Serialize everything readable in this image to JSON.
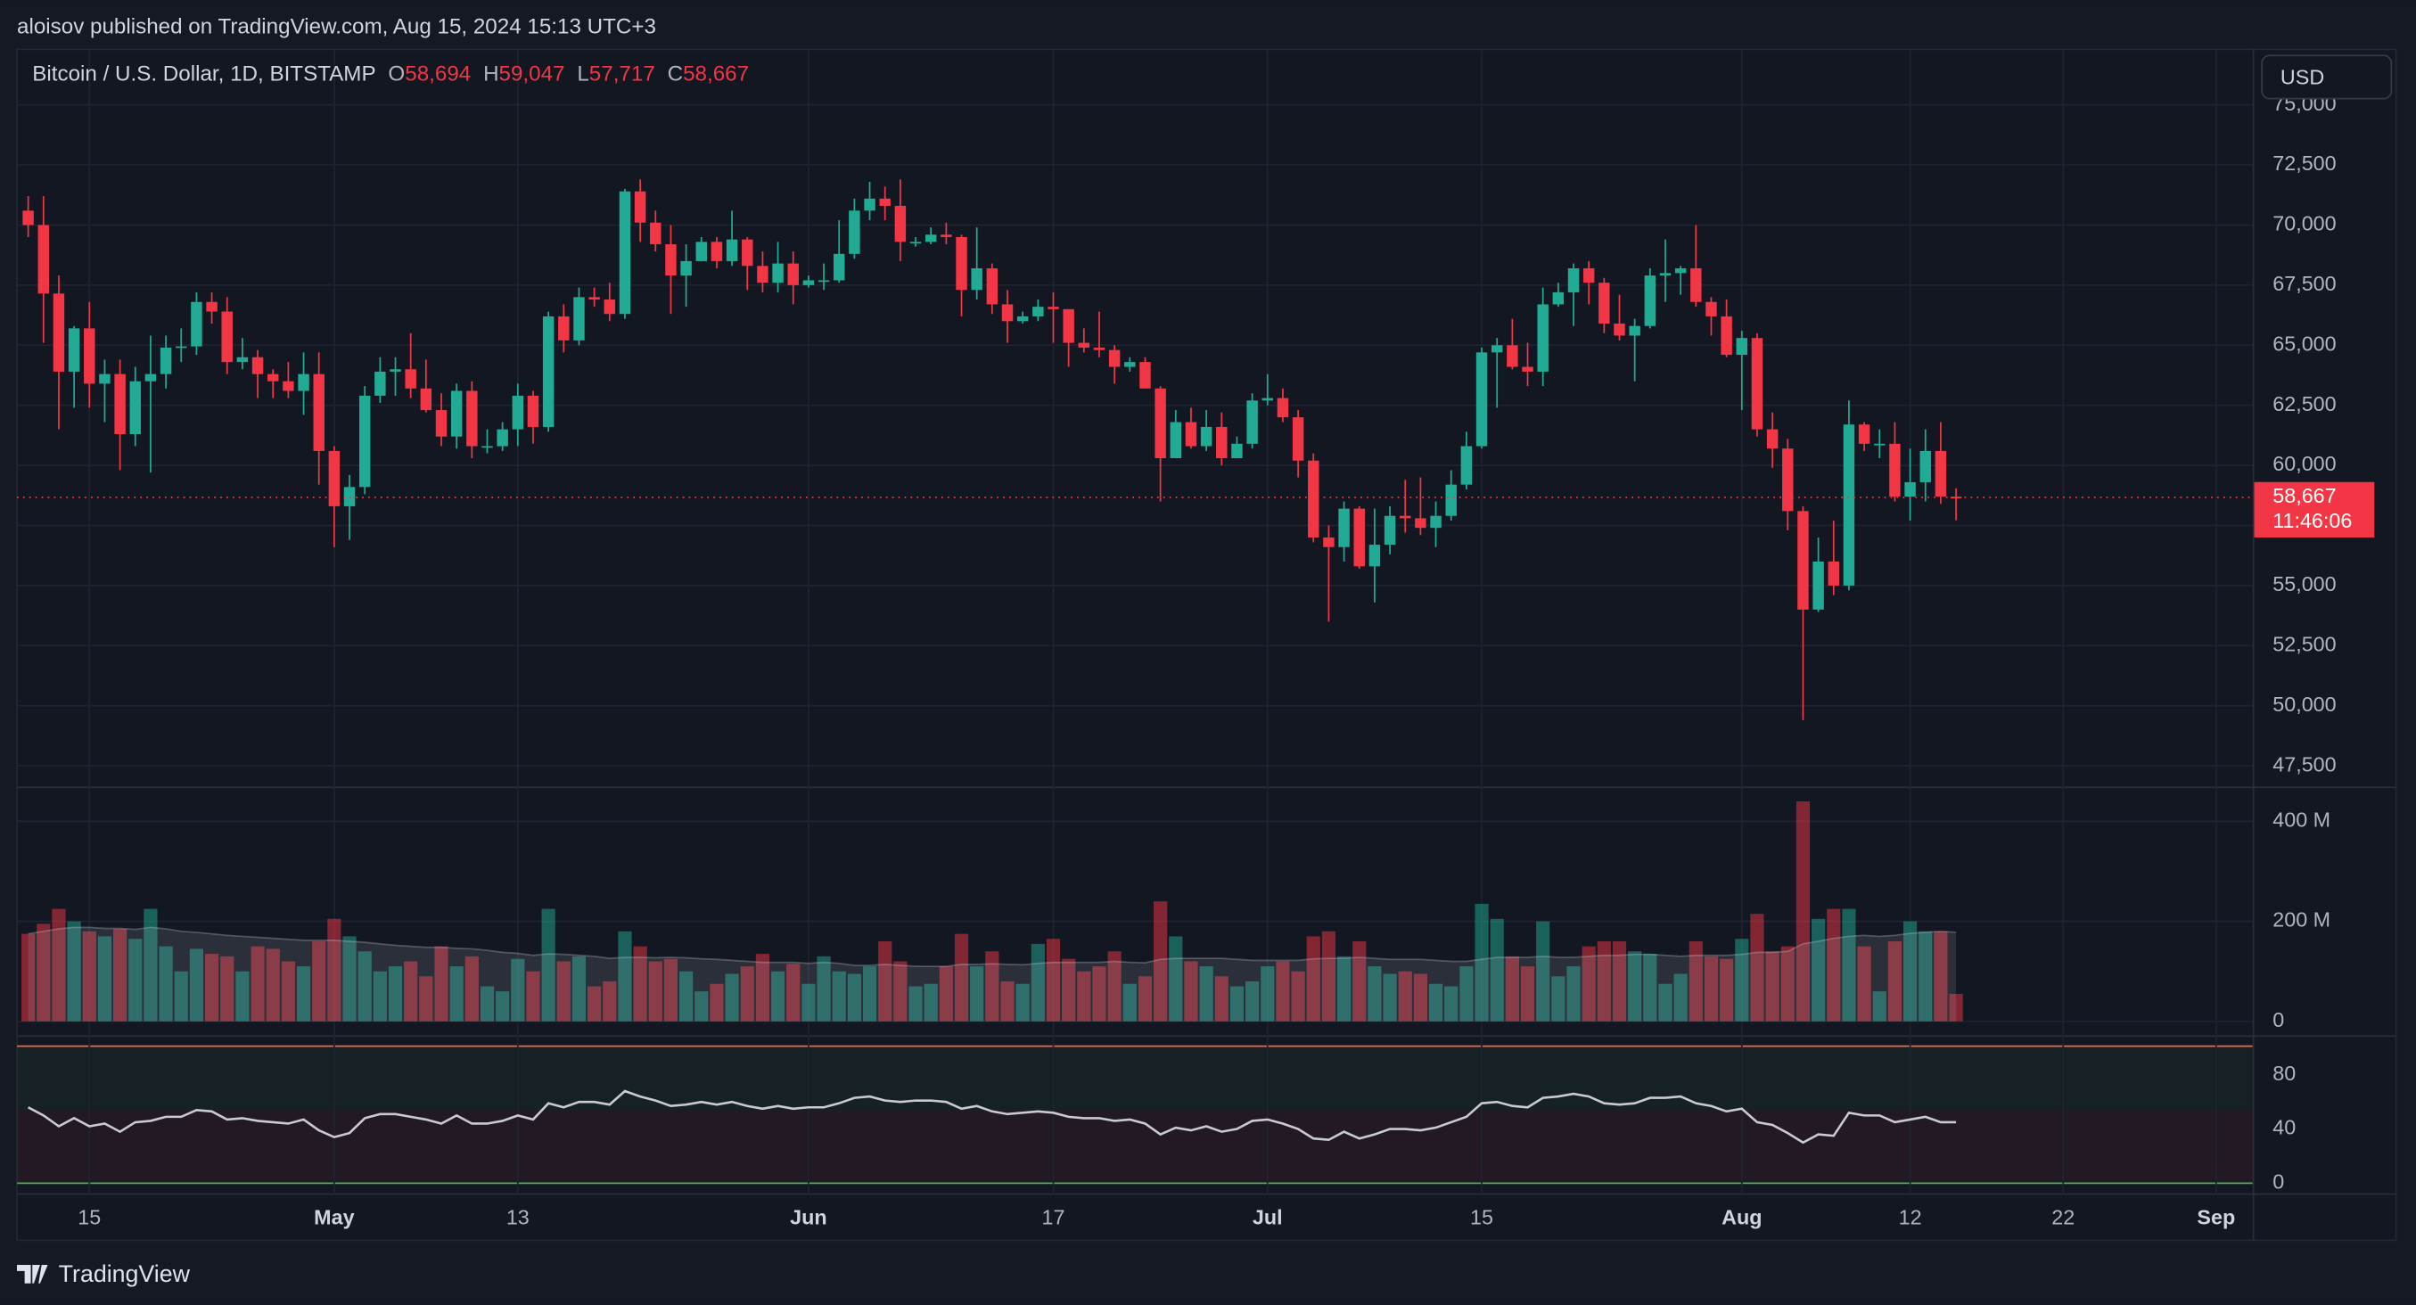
{
  "header": {
    "text": "aloisov published on TradingView.com, Aug 15, 2024 15:13 UTC+3"
  },
  "currency_button": "USD",
  "footer": {
    "brand": "TradingView"
  },
  "chart_data": {
    "type": "candlestick",
    "legend": {
      "symbol": "Bitcoin / U.S. Dollar, 1D, BITSTAMP",
      "items": [
        {
          "key": "O",
          "value": "58,694"
        },
        {
          "key": "H",
          "value": "59,047"
        },
        {
          "key": "L",
          "value": "57,717"
        },
        {
          "key": "C",
          "value": "58,667"
        }
      ]
    },
    "price_tag": {
      "price": "58,667",
      "countdown": "11:46:06"
    },
    "up_color": "#22ab94",
    "down_color": "#f23645",
    "grid": true,
    "categories": [
      "Apr 11",
      "Apr 12",
      "Apr 13",
      "Apr 14",
      "Apr 15",
      "Apr 16",
      "Apr 17",
      "Apr 18",
      "Apr 19",
      "Apr 20",
      "Apr 21",
      "Apr 22",
      "Apr 23",
      "Apr 24",
      "Apr 25",
      "Apr 26",
      "Apr 27",
      "Apr 28",
      "Apr 29",
      "Apr 30",
      "May 1",
      "May 2",
      "May 3",
      "May 4",
      "May 5",
      "May 6",
      "May 7",
      "May 8",
      "May 9",
      "May 10",
      "May 11",
      "May 12",
      "May 13",
      "May 14",
      "May 15",
      "May 16",
      "May 17",
      "May 18",
      "May 19",
      "May 20",
      "May 21",
      "May 22",
      "May 23",
      "May 24",
      "May 25",
      "May 26",
      "May 27",
      "May 28",
      "May 29",
      "May 30",
      "May 31",
      "Jun 1",
      "Jun 2",
      "Jun 3",
      "Jun 4",
      "Jun 5",
      "Jun 6",
      "Jun 7",
      "Jun 8",
      "Jun 9",
      "Jun 10",
      "Jun 11",
      "Jun 12",
      "Jun 13",
      "Jun 14",
      "Jun 15",
      "Jun 16",
      "Jun 17",
      "Jun 18",
      "Jun 19",
      "Jun 20",
      "Jun 21",
      "Jun 22",
      "Jun 23",
      "Jun 24",
      "Jun 25",
      "Jun 26",
      "Jun 27",
      "Jun 28",
      "Jun 29",
      "Jun 30",
      "Jul 1",
      "Jul 2",
      "Jul 3",
      "Jul 4",
      "Jul 5",
      "Jul 6",
      "Jul 7",
      "Jul 8",
      "Jul 9",
      "Jul 10",
      "Jul 11",
      "Jul 12",
      "Jul 13",
      "Jul 14",
      "Jul 15",
      "Jul 16",
      "Jul 17",
      "Jul 18",
      "Jul 19",
      "Jul 20",
      "Jul 21",
      "Jul 22",
      "Jul 23",
      "Jul 24",
      "Jul 25",
      "Jul 26",
      "Jul 27",
      "Jul 28",
      "Jul 29",
      "Jul 30",
      "Jul 31",
      "Aug 1",
      "Aug 2",
      "Aug 3",
      "Aug 4",
      "Aug 5",
      "Aug 6",
      "Aug 7",
      "Aug 8",
      "Aug 9",
      "Aug 10",
      "Aug 11",
      "Aug 12",
      "Aug 13",
      "Aug 14",
      "Aug 15"
    ],
    "open": [
      70600,
      70000,
      67150,
      63900,
      65700,
      63400,
      63800,
      61300,
      63500,
      63800,
      64900,
      64950,
      66800,
      66400,
      64300,
      64500,
      63800,
      63500,
      63100,
      63800,
      60600,
      58300,
      59100,
      62900,
      63900,
      64000,
      63200,
      62300,
      61200,
      63100,
      60800,
      60800,
      61500,
      62900,
      61600,
      66200,
      65200,
      67000,
      66900,
      66300,
      71400,
      70100,
      69200,
      67900,
      68500,
      69300,
      68500,
      69400,
      68300,
      67600,
      68400,
      67500,
      67700,
      67700,
      68800,
      70600,
      71100,
      70800,
      69300,
      69300,
      69600,
      69500,
      67300,
      68200,
      66700,
      66000,
      66200,
      66600,
      66500,
      65100,
      64900,
      64800,
      64100,
      64300,
      63200,
      60300,
      61800,
      60800,
      61600,
      60300,
      60900,
      62700,
      62800,
      62000,
      60200,
      57000,
      56600,
      58200,
      55800,
      56700,
      57900,
      57800,
      57400,
      57900,
      59200,
      60800,
      64700,
      65000,
      64100,
      63900,
      66700,
      67200,
      68200,
      67600,
      65900,
      65400,
      65800,
      67900,
      68000,
      68200,
      66800,
      66200,
      64600,
      65300,
      61500,
      60700,
      58100,
      54000,
      56000,
      55000,
      61700,
      60900,
      60900,
      58700,
      59300,
      60600,
      58694
    ],
    "high": [
      71200,
      71200,
      67900,
      65800,
      66800,
      64400,
      64400,
      64100,
      65400,
      65400,
      65700,
      67200,
      67200,
      67000,
      65300,
      64800,
      64000,
      64300,
      64700,
      64700,
      60800,
      59600,
      63300,
      64500,
      64500,
      65500,
      64400,
      63000,
      63400,
      63500,
      61500,
      61800,
      63400,
      63100,
      66400,
      66700,
      67400,
      67400,
      67600,
      71500,
      71900,
      70600,
      70000,
      69200,
      69500,
      69500,
      70600,
      69500,
      68900,
      69300,
      68900,
      67900,
      68400,
      70200,
      71100,
      71800,
      71600,
      71900,
      69500,
      69900,
      70100,
      69600,
      69900,
      68400,
      67300,
      66400,
      66900,
      67200,
      66500,
      65700,
      66400,
      65000,
      64500,
      64500,
      63300,
      62300,
      62400,
      62300,
      62200,
      61200,
      63000,
      63800,
      63200,
      62300,
      60500,
      57500,
      58500,
      58300,
      58200,
      58300,
      59400,
      59500,
      58500,
      59800,
      61400,
      64900,
      65300,
      66100,
      65100,
      67400,
      67600,
      68400,
      68500,
      67800,
      67100,
      66100,
      68200,
      69400,
      68300,
      70000,
      67000,
      66900,
      65600,
      65500,
      62200,
      61100,
      58300,
      57000,
      57700,
      62700,
      61800,
      61500,
      61800,
      60700,
      61500,
      61800,
      59047
    ],
    "low": [
      69500,
      65100,
      61500,
      62400,
      62400,
      61800,
      59800,
      60800,
      59700,
      63200,
      64300,
      64600,
      65900,
      63800,
      64000,
      62800,
      62800,
      62800,
      62100,
      59200,
      56600,
      56900,
      58800,
      62600,
      62900,
      62800,
      62200,
      60800,
      60700,
      60300,
      60500,
      60600,
      60800,
      60900,
      61400,
      64700,
      65000,
      66600,
      66000,
      66100,
      69300,
      68900,
      66300,
      66600,
      68500,
      68200,
      68300,
      67300,
      67200,
      67200,
      66700,
      67400,
      67300,
      67600,
      68600,
      70200,
      70200,
      68500,
      69100,
      69200,
      69200,
      66200,
      66900,
      66300,
      65100,
      65900,
      66000,
      65100,
      64100,
      64700,
      64500,
      63400,
      63900,
      63200,
      58500,
      60300,
      60700,
      60600,
      60000,
      60300,
      60700,
      62500,
      61800,
      59500,
      56800,
      53500,
      56000,
      55700,
      54300,
      56300,
      57200,
      57100,
      56600,
      57700,
      59000,
      60700,
      62400,
      64000,
      63300,
      63300,
      66600,
      65800,
      66700,
      65500,
      65200,
      63500,
      65700,
      66800,
      67100,
      66600,
      65400,
      64500,
      62300,
      61200,
      59900,
      57300,
      49400,
      53900,
      54600,
      54800,
      60600,
      60300,
      58500,
      57700,
      58500,
      58400,
      57717
    ],
    "close": [
      70000,
      67150,
      63900,
      65700,
      63400,
      63800,
      61300,
      63500,
      63800,
      64900,
      64950,
      66800,
      66400,
      64300,
      64500,
      63800,
      63500,
      63100,
      63800,
      60600,
      58300,
      59100,
      62900,
      63900,
      64000,
      63200,
      62300,
      61200,
      63100,
      60800,
      60800,
      61500,
      62900,
      61600,
      66200,
      65200,
      67000,
      66900,
      66300,
      71400,
      70100,
      69200,
      67900,
      68500,
      69300,
      68500,
      69400,
      68300,
      67600,
      68400,
      67500,
      67700,
      67700,
      68800,
      70600,
      71100,
      70800,
      69300,
      69300,
      69600,
      69500,
      67300,
      68200,
      66700,
      66000,
      66200,
      66600,
      66500,
      65100,
      64900,
      64800,
      64100,
      64300,
      63200,
      60300,
      61800,
      60800,
      61600,
      60300,
      60900,
      62700,
      62800,
      62000,
      60200,
      57000,
      56600,
      58200,
      55800,
      56700,
      57900,
      57800,
      57400,
      57900,
      59200,
      60800,
      64700,
      65000,
      64100,
      63900,
      66700,
      67200,
      68200,
      67600,
      65900,
      65400,
      65800,
      67900,
      68000,
      68200,
      66800,
      66200,
      64600,
      65300,
      61500,
      60700,
      58100,
      54000,
      56000,
      55000,
      61700,
      60900,
      60900,
      58700,
      59300,
      60600,
      58700,
      58667
    ],
    "ylim": [
      46670,
      77310
    ],
    "yticks": [
      {
        "value": 47500,
        "label": "47,500"
      },
      {
        "value": 50000,
        "label": "50,000"
      },
      {
        "value": 52500,
        "label": "52,500"
      },
      {
        "value": 55000,
        "label": "55,000"
      },
      {
        "value": 57500,
        "label": "57,500"
      },
      {
        "value": 60000,
        "label": "60,000"
      },
      {
        "value": 62500,
        "label": "62,500"
      },
      {
        "value": 65000,
        "label": "65,000"
      },
      {
        "value": 67500,
        "label": "67,500"
      },
      {
        "value": 70000,
        "label": "70,000"
      },
      {
        "value": 72500,
        "label": "72,500"
      },
      {
        "value": 75000,
        "label": "75,000"
      }
    ],
    "xticks": [
      {
        "value": "Apr 15",
        "label": "15"
      },
      {
        "value": "May 1",
        "label": "May"
      },
      {
        "value": "May 13",
        "label": "13"
      },
      {
        "value": "Jun 1",
        "label": "Jun"
      },
      {
        "value": "Jun 17",
        "label": "17"
      },
      {
        "value": "Jul 1",
        "label": "Jul"
      },
      {
        "value": "Jul 15",
        "label": "15"
      },
      {
        "value": "Aug 1",
        "label": "Aug"
      },
      {
        "value": "Aug 12",
        "label": "12"
      },
      {
        "value": "Aug 22",
        "label": "22"
      },
      {
        "value": "Sep 1",
        "label": "Sep"
      }
    ],
    "volume": {
      "values": [
        175,
        195,
        225,
        200,
        180,
        170,
        185,
        165,
        225,
        150,
        100,
        145,
        135,
        130,
        100,
        150,
        145,
        120,
        110,
        160,
        205,
        170,
        140,
        100,
        110,
        120,
        90,
        150,
        110,
        130,
        70,
        60,
        125,
        100,
        225,
        120,
        130,
        70,
        80,
        180,
        150,
        120,
        125,
        100,
        60,
        75,
        95,
        110,
        135,
        100,
        115,
        75,
        130,
        100,
        95,
        110,
        160,
        120,
        70,
        75,
        110,
        175,
        110,
        140,
        80,
        75,
        155,
        165,
        125,
        100,
        110,
        140,
        75,
        90,
        240,
        170,
        120,
        110,
        90,
        70,
        80,
        110,
        120,
        100,
        170,
        180,
        130,
        160,
        110,
        95,
        100,
        95,
        75,
        70,
        110,
        235,
        205,
        130,
        110,
        200,
        90,
        110,
        150,
        160,
        160,
        140,
        135,
        75,
        95,
        160,
        130,
        125,
        165,
        215,
        140,
        150,
        440,
        205,
        225,
        225,
        150,
        60,
        160,
        200,
        180,
        180,
        55
      ],
      "ma": [
        175,
        180,
        185,
        188,
        188,
        186,
        186,
        184,
        188,
        185,
        180,
        178,
        175,
        172,
        170,
        168,
        166,
        164,
        162,
        162,
        162,
        160,
        158,
        155,
        152,
        150,
        148,
        148,
        146,
        145,
        142,
        138,
        136,
        132,
        135,
        134,
        132,
        130,
        126,
        128,
        128,
        127,
        128,
        127,
        125,
        124,
        122,
        120,
        118,
        118,
        118,
        116,
        118,
        116,
        112,
        112,
        114,
        112,
        110,
        110,
        110,
        114,
        114,
        115,
        114,
        113,
        116,
        118,
        118,
        118,
        118,
        120,
        118,
        117,
        124,
        126,
        126,
        126,
        126,
        124,
        122,
        122,
        122,
        122,
        125,
        126,
        126,
        128,
        126,
        124,
        124,
        124,
        122,
        120,
        120,
        124,
        128,
        128,
        128,
        130,
        128,
        128,
        130,
        132,
        132,
        134,
        134,
        132,
        130,
        132,
        132,
        132,
        134,
        138,
        138,
        140,
        155,
        160,
        166,
        170,
        172,
        170,
        172,
        176,
        178,
        180,
        178
      ],
      "ylim": [
        -28,
        465
      ],
      "yticks": [
        0,
        {
          "value": 200,
          "label": "200 M"
        },
        {
          "value": 400,
          "label": "400 M"
        }
      ]
    },
    "rsi": {
      "values": [
        56,
        50,
        42,
        48,
        42,
        44,
        38,
        45,
        46,
        49,
        49,
        54,
        53,
        47,
        48,
        46,
        45,
        44,
        47,
        39,
        34,
        37,
        48,
        51,
        51,
        49,
        47,
        44,
        50,
        44,
        44,
        46,
        50,
        47,
        59,
        56,
        60,
        60,
        58,
        68,
        64,
        61,
        57,
        58,
        60,
        58,
        60,
        57,
        55,
        57,
        55,
        56,
        56,
        59,
        63,
        64,
        61,
        60,
        61,
        61,
        60,
        55,
        57,
        53,
        51,
        52,
        53,
        52,
        49,
        48,
        48,
        46,
        47,
        44,
        36,
        41,
        39,
        42,
        38,
        40,
        46,
        47,
        44,
        40,
        33,
        32,
        38,
        33,
        36,
        40,
        40,
        39,
        41,
        45,
        49,
        59,
        60,
        57,
        56,
        63,
        64,
        66,
        64,
        59,
        58,
        59,
        63,
        63,
        64,
        59,
        57,
        53,
        55,
        45,
        43,
        37,
        30,
        36,
        35,
        52,
        50,
        50,
        45,
        47,
        49,
        45,
        45
      ],
      "color": "#c9cbd1",
      "ylim": [
        -8,
        108
      ],
      "yticks": [
        0,
        40,
        80
      ]
    }
  }
}
